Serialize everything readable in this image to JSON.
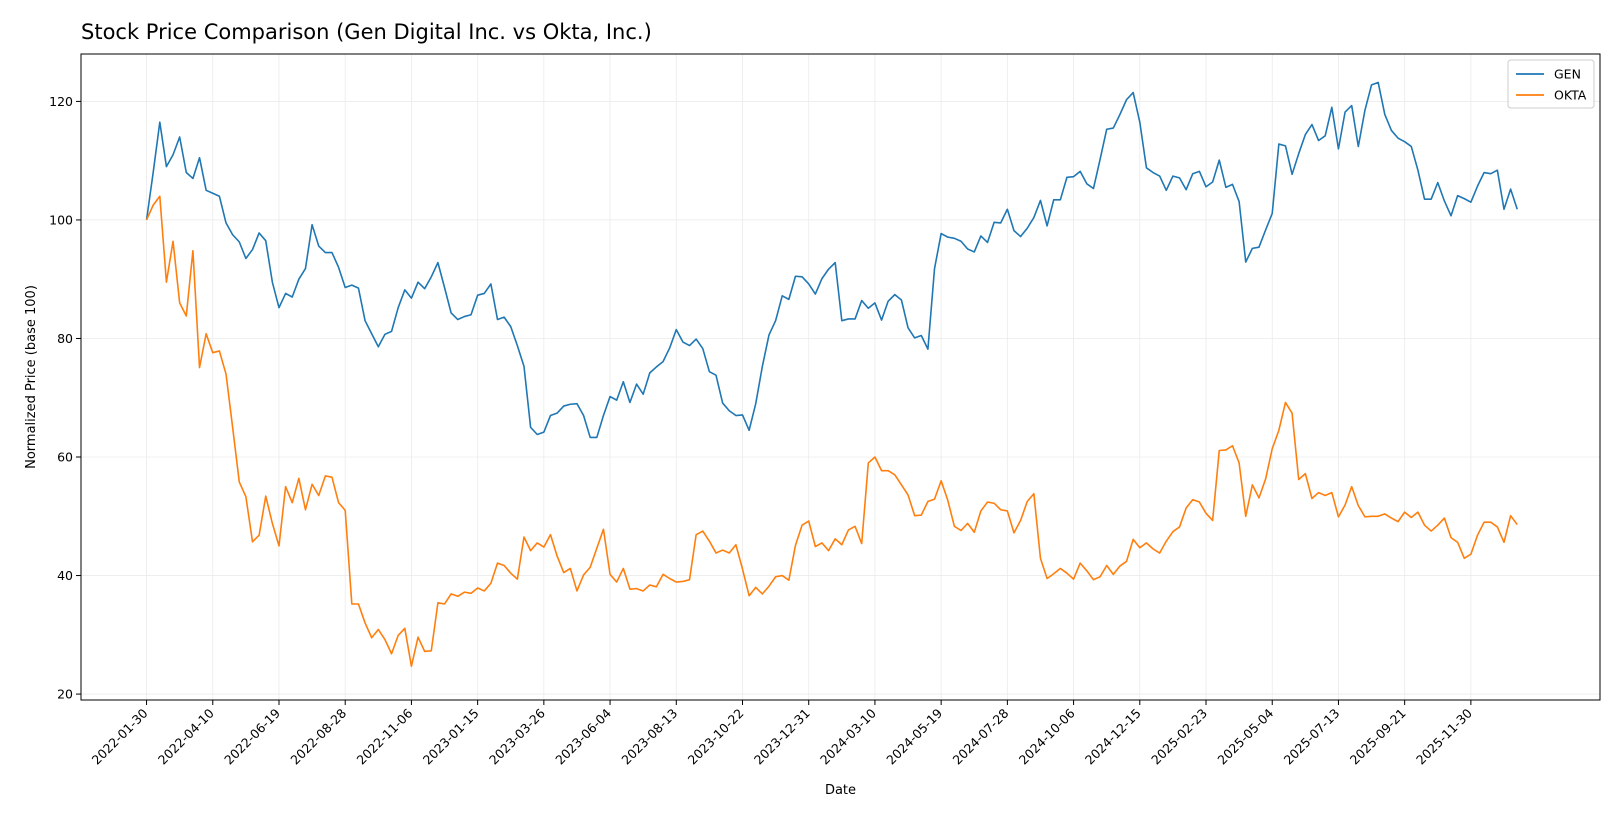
{
  "chart_data": {
    "type": "line",
    "title": "Stock Price Comparison (Gen Digital Inc. vs Okta, Inc.)",
    "xlabel": "Date",
    "ylabel": "Normalized Price (base 100)",
    "ylim": [
      19,
      128
    ],
    "yticks": [
      20,
      40,
      60,
      80,
      100,
      120
    ],
    "xlim": [
      -9.9,
      219.5
    ],
    "grid": true,
    "legend_position": "top-right",
    "x_tick_labels": [
      "2022-01-30",
      "2022-04-10",
      "2022-06-19",
      "2022-08-28",
      "2022-11-06",
      "2023-01-15",
      "2023-03-26",
      "2023-06-04",
      "2023-08-13",
      "2023-10-22",
      "2023-12-31",
      "2024-03-10",
      "2024-05-19",
      "2024-07-28",
      "2024-10-06",
      "2024-12-15",
      "2025-02-23",
      "2025-05-04",
      "2025-07-13",
      "2025-09-21",
      "2025-11-30"
    ],
    "x_tick_positions": [
      0,
      10,
      20,
      30,
      40,
      50,
      60,
      70,
      80,
      90,
      100,
      110,
      120,
      130,
      140,
      150,
      160,
      170,
      180,
      190,
      200
    ],
    "x_unit": "weeks since 2022-01-30",
    "series": [
      {
        "name": "GEN",
        "color": "#1f77b4",
        "x": [
          0,
          1,
          2,
          3,
          4,
          5,
          6,
          7,
          8,
          9,
          10,
          11,
          12,
          13,
          14,
          15,
          16,
          17,
          18,
          19,
          20,
          21,
          22,
          23,
          24,
          25,
          26,
          27,
          28,
          29,
          30,
          31,
          32,
          33,
          34,
          35,
          36,
          37,
          38,
          39,
          40,
          41,
          42,
          43,
          44,
          45,
          46,
          47,
          48,
          49,
          50,
          51,
          52,
          53,
          54,
          55,
          56,
          57,
          58,
          59,
          60,
          61,
          62,
          63,
          64,
          65,
          66,
          67,
          68,
          69,
          70,
          71,
          72,
          73,
          74,
          75,
          76,
          77,
          78,
          79,
          80,
          81,
          82,
          83,
          84,
          85,
          86,
          87,
          88,
          89,
          90,
          91,
          92,
          93,
          94,
          95,
          96,
          97,
          98,
          99,
          100,
          101,
          102,
          103,
          104,
          105,
          106,
          107,
          108,
          109,
          110,
          111,
          112,
          113,
          114,
          115,
          116,
          117,
          118,
          119,
          120,
          121,
          122,
          123,
          124,
          125,
          126,
          127,
          128,
          129,
          130,
          131,
          132,
          133,
          134,
          135,
          136,
          137,
          138,
          139,
          140,
          141,
          142,
          143,
          144,
          145,
          146,
          147,
          148,
          149,
          150,
          151,
          152,
          153,
          154,
          155,
          156,
          157,
          158,
          159,
          160,
          161,
          162,
          163,
          164,
          165,
          166,
          167,
          168,
          169,
          170,
          171,
          172,
          173,
          174,
          175,
          176,
          177,
          178,
          179,
          180,
          181,
          182,
          183,
          184,
          185,
          186,
          187,
          188,
          189,
          190,
          191,
          192,
          193,
          194,
          195,
          196,
          197,
          198,
          199,
          200,
          201,
          202,
          203,
          204,
          205,
          206,
          207
        ],
        "values": [
          100,
          108,
          116.5,
          109,
          111,
          114,
          108,
          107,
          110.5,
          105,
          104.5,
          104,
          99.5,
          97.5,
          96.3,
          93.5,
          95,
          97.8,
          96.5,
          89.5,
          85.2,
          87.6,
          87,
          90,
          91.8,
          99.2,
          95.6,
          94.5,
          94.5,
          92,
          88.6,
          89,
          88.5,
          83,
          80.8,
          78.6,
          80.7,
          81.2,
          85.2,
          88.2,
          86.8,
          89.5,
          88.4,
          90.4,
          92.8,
          88.6,
          84.3,
          83.2,
          83.7,
          84,
          87.3,
          87.6,
          89.2,
          83.2,
          83.6,
          82,
          78.8,
          75.3,
          65,
          63.8,
          64.2,
          67,
          67.4,
          68.6,
          68.9,
          69,
          67,
          63.3,
          63.3,
          67,
          70.2,
          69.6,
          72.7,
          69.2,
          72.3,
          70.6,
          74.2,
          75.2,
          76.1,
          78.4,
          81.5,
          79.4,
          78.8,
          79.9,
          78.3,
          74.4,
          73.8,
          69.1,
          67.8,
          67,
          67.1,
          64.5,
          69,
          75.3,
          80.6,
          83,
          87.2,
          86.6,
          90.5,
          90.4,
          89.2,
          87.5,
          90.1,
          91.7,
          92.8,
          83,
          83.3,
          83.3,
          86.4,
          85.1,
          86,
          83.1,
          86.3,
          87.4,
          86.5,
          81.8,
          80.1,
          80.5,
          78.2,
          91.8,
          97.7,
          97.1,
          96.9,
          96.4,
          95.1,
          94.6,
          97.3,
          96.2,
          99.6,
          99.5,
          101.8,
          98.2,
          97.2,
          98.6,
          100.4,
          103.3,
          99,
          103.4,
          103.4,
          107.2,
          107.3,
          108.2,
          106.1,
          105.3,
          110.2,
          115.3,
          115.5,
          117.8,
          120.3,
          121.5,
          116.5,
          108.8,
          108,
          107.4,
          105,
          107.4,
          107.1,
          105.1,
          107.8,
          108.2,
          105.6,
          106.4,
          110.1,
          105.5,
          106,
          103.1,
          92.9,
          95.2,
          95.4,
          98.3,
          101.1,
          112.8,
          112.5,
          107.7,
          111.2,
          114.4,
          116.1,
          113.4,
          114.2,
          119,
          112,
          118.2,
          119.3,
          112.4,
          118.5,
          122.8,
          123.2,
          117.8,
          115.1,
          113.8,
          113.2,
          112.4,
          108.4,
          103.5,
          103.5,
          106.3,
          103.2,
          100.7,
          104.1,
          103.6,
          103,
          105.7,
          108,
          107.8,
          108.4,
          101.8,
          105.2,
          101.8
        ]
      },
      {
        "name": "OKTA",
        "color": "#ff7f0e",
        "x": [
          0,
          1,
          2,
          3,
          4,
          5,
          6,
          7,
          8,
          9,
          10,
          11,
          12,
          13,
          14,
          15,
          16,
          17,
          18,
          19,
          20,
          21,
          22,
          23,
          24,
          25,
          26,
          27,
          28,
          29,
          30,
          31,
          32,
          33,
          34,
          35,
          36,
          37,
          38,
          39,
          40,
          41,
          42,
          43,
          44,
          45,
          46,
          47,
          48,
          49,
          50,
          51,
          52,
          53,
          54,
          55,
          56,
          57,
          58,
          59,
          60,
          61,
          62,
          63,
          64,
          65,
          66,
          67,
          68,
          69,
          70,
          71,
          72,
          73,
          74,
          75,
          76,
          77,
          78,
          79,
          80,
          81,
          82,
          83,
          84,
          85,
          86,
          87,
          88,
          89,
          90,
          91,
          92,
          93,
          94,
          95,
          96,
          97,
          98,
          99,
          100,
          101,
          102,
          103,
          104,
          105,
          106,
          107,
          108,
          109,
          110,
          111,
          112,
          113,
          114,
          115,
          116,
          117,
          118,
          119,
          120,
          121,
          122,
          123,
          124,
          125,
          126,
          127,
          128,
          129,
          130,
          131,
          132,
          133,
          134,
          135,
          136,
          137,
          138,
          139,
          140,
          141,
          142,
          143,
          144,
          145,
          146,
          147,
          148,
          149,
          150,
          151,
          152,
          153,
          154,
          155,
          156,
          157,
          158,
          159,
          160,
          161,
          162,
          163,
          164,
          165,
          166,
          167,
          168,
          169,
          170,
          171,
          172,
          173,
          174,
          175,
          176,
          177,
          178,
          179,
          180,
          181,
          182,
          183,
          184,
          185,
          186,
          187,
          188,
          189,
          190,
          191,
          192,
          193,
          194,
          195,
          196,
          197,
          198,
          199,
          200,
          201,
          202,
          203,
          204,
          205,
          206,
          207
        ],
        "values": [
          100,
          102.5,
          104,
          89.5,
          96.4,
          86,
          83.8,
          94.8,
          75.1,
          80.8,
          77.6,
          77.9,
          74,
          65,
          55.8,
          53.3,
          45.7,
          46.8,
          53.4,
          48.8,
          45,
          55,
          52.3,
          56.4,
          51.1,
          55.4,
          53.5,
          56.8,
          56.6,
          52.3,
          51,
          35.2,
          35.2,
          32,
          29.5,
          30.9,
          29.2,
          26.8,
          29.9,
          31.1,
          24.7,
          29.6,
          27.2,
          27.3,
          35.4,
          35.2,
          36.9,
          36.5,
          37.2,
          37,
          37.9,
          37.4,
          38.7,
          42.1,
          41.7,
          40.4,
          39.4,
          46.5,
          44.2,
          45.5,
          44.8,
          46.9,
          43.3,
          40.5,
          41.2,
          37.4,
          40.1,
          41.4,
          44.6,
          47.8,
          40.2,
          38.9,
          41.2,
          37.7,
          37.8,
          37.4,
          38.4,
          38.1,
          40.2,
          39.5,
          38.9,
          39,
          39.3,
          46.9,
          47.5,
          45.8,
          43.8,
          44.3,
          43.8,
          45.2,
          41.1,
          36.6,
          38,
          36.9,
          38.2,
          39.8,
          40,
          39.2,
          45.1,
          48.5,
          49.2,
          44.9,
          45.5,
          44.2,
          46.2,
          45.2,
          47.7,
          48.3,
          45.4,
          59,
          60,
          57.7,
          57.7,
          57,
          55.3,
          53.6,
          50.1,
          50.2,
          52.5,
          52.9,
          56,
          52.7,
          48.3,
          47.6,
          48.8,
          47.3,
          50.9,
          52.4,
          52.2,
          51.1,
          50.9,
          47.2,
          49.3,
          52.5,
          53.8,
          42.9,
          39.5,
          40.3,
          41.2,
          40.4,
          39.4,
          42.1,
          40.8,
          39.3,
          39.8,
          41.7,
          40.2,
          41.6,
          42.4,
          46.1,
          44.7,
          45.5,
          44.5,
          43.8,
          45.8,
          47.4,
          48.2,
          51.4,
          52.8,
          52.4,
          50.5,
          49.3,
          61.1,
          61.2,
          61.9,
          59,
          50,
          55.3,
          53.1,
          56.3,
          61.4,
          64.5,
          69.2,
          67.4,
          56.2,
          57.2,
          53,
          54,
          53.5,
          54,
          49.9,
          51.9,
          55,
          51.8,
          49.9,
          50,
          50,
          50.4,
          49.7,
          49.1,
          50.7,
          49.8,
          50.7,
          48.5,
          47.5,
          48.5,
          49.7,
          46.4,
          45.6,
          42.9,
          43.6,
          46.8,
          49,
          49,
          48.2,
          45.6,
          50.1,
          48.6
        ]
      }
    ]
  }
}
